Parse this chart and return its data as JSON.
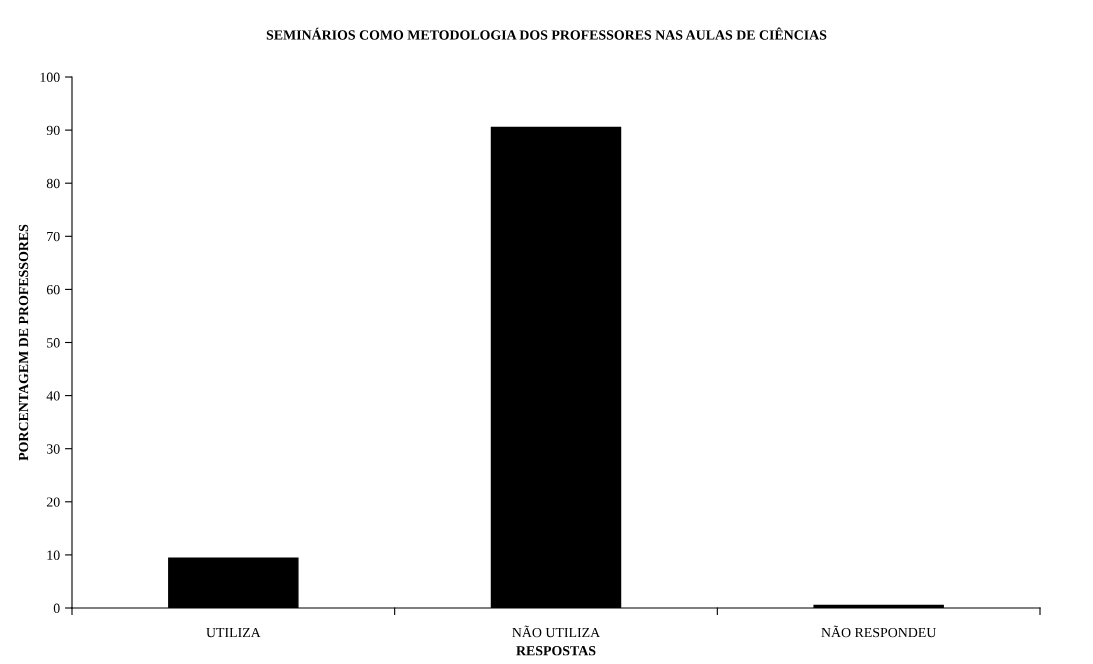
{
  "chart_data": {
    "type": "bar",
    "title": "SEMINÁRIOS COMO METODOLOGIA DOS PROFESSORES NAS AULAS DE CIÊNCIAS",
    "xlabel": "RESPOSTAS",
    "ylabel": "PORCENTAGEM DE PROFESSORES",
    "categories": [
      "UTILIZA",
      "NÃO UTILIZA",
      "NÃO RESPONDEU"
    ],
    "values": [
      9.4,
      90.5,
      0.5
    ],
    "color": "#000000",
    "ylim": [
      0,
      100
    ],
    "yticks": [
      0,
      10,
      20,
      30,
      40,
      50,
      60,
      70,
      80,
      90,
      100
    ],
    "grid": false
  }
}
